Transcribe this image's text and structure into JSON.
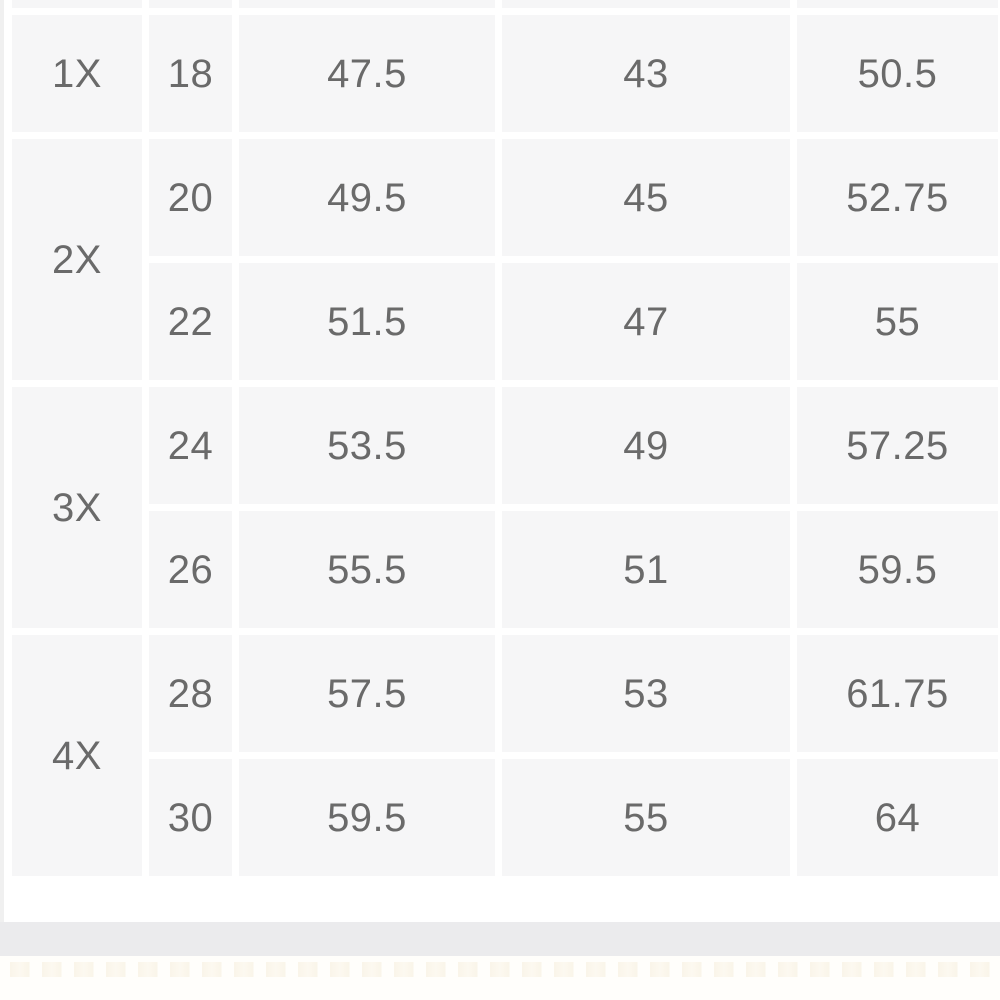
{
  "size_chart": {
    "top_row_cut_off": true,
    "groups": [
      {
        "label": "1X",
        "rows": [
          {
            "size": "18",
            "values": [
              "47.5",
              "43",
              "50.5"
            ]
          }
        ]
      },
      {
        "label": "2X",
        "rows": [
          {
            "size": "20",
            "values": [
              "49.5",
              "45",
              "52.75"
            ]
          },
          {
            "size": "22",
            "values": [
              "51.5",
              "47",
              "55"
            ]
          }
        ]
      },
      {
        "label": "3X",
        "rows": [
          {
            "size": "24",
            "values": [
              "53.5",
              "49",
              "57.25"
            ]
          },
          {
            "size": "26",
            "values": [
              "55.5",
              "51",
              "59.5"
            ]
          }
        ]
      },
      {
        "label": "4X",
        "rows": [
          {
            "size": "28",
            "values": [
              "57.5",
              "53",
              "61.75"
            ]
          },
          {
            "size": "30",
            "values": [
              "59.5",
              "55",
              "64"
            ]
          }
        ]
      }
    ]
  },
  "colors": {
    "cell_background": "#f6f6f7",
    "cell_text": "#6a6a6a",
    "cell_gap": "#ffffff",
    "divider_band": "#ebebed",
    "page_left_edge": "#f0f0f0",
    "footer_pattern_tint": "#f9f3e6"
  }
}
